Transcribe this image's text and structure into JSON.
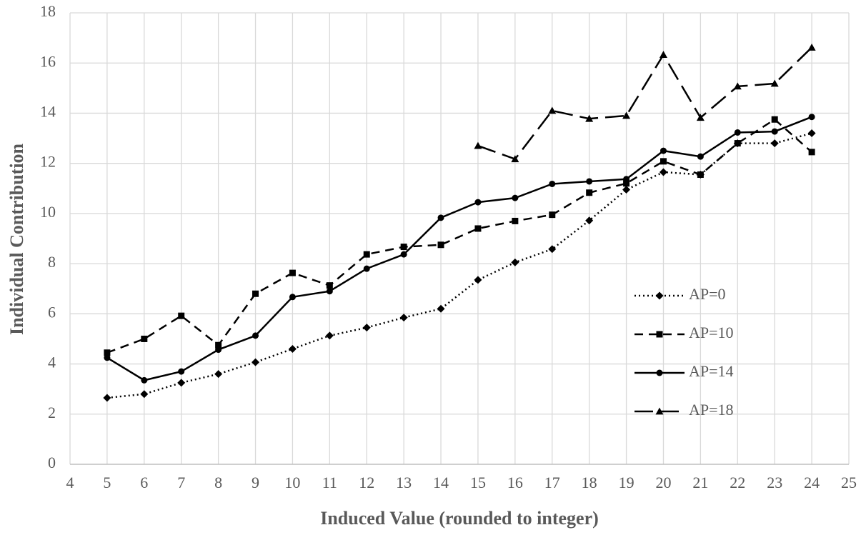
{
  "chart_data": {
    "type": "line",
    "x_label": "Induced Value (rounded to integer)",
    "y_label": "Individual Contribution",
    "x": [
      5,
      6,
      7,
      8,
      9,
      10,
      11,
      12,
      13,
      14,
      15,
      16,
      17,
      18,
      19,
      20,
      21,
      22,
      23,
      24
    ],
    "xlim": [
      4,
      25
    ],
    "xticks": [
      4,
      5,
      6,
      7,
      8,
      9,
      10,
      11,
      12,
      13,
      14,
      15,
      16,
      17,
      18,
      19,
      20,
      21,
      22,
      23,
      24,
      25
    ],
    "ylim": [
      0,
      18
    ],
    "yticks": [
      0,
      2,
      4,
      6,
      8,
      10,
      12,
      14,
      16,
      18
    ],
    "grid": true,
    "legend_position": "right",
    "series": [
      {
        "name": "AP=0",
        "color": "#000000",
        "dash": "dotted",
        "marker": "diamond",
        "values": [
          2.65,
          2.8,
          3.25,
          3.6,
          4.07,
          4.6,
          5.13,
          5.45,
          5.85,
          6.2,
          7.35,
          8.05,
          8.58,
          9.72,
          10.95,
          11.65,
          11.55,
          12.8,
          12.8,
          13.2
        ]
      },
      {
        "name": "AP=10",
        "color": "#000000",
        "dash": "dashed",
        "marker": "square",
        "values": [
          4.45,
          5.0,
          5.92,
          4.75,
          6.8,
          7.63,
          7.13,
          8.37,
          8.67,
          8.75,
          9.4,
          9.7,
          9.95,
          10.83,
          11.2,
          12.08,
          11.55,
          12.8,
          13.75,
          12.45
        ]
      },
      {
        "name": "AP=14",
        "color": "#000000",
        "dash": "solid",
        "marker": "circle",
        "values": [
          4.25,
          3.35,
          3.7,
          4.57,
          5.13,
          6.67,
          6.9,
          7.8,
          8.37,
          9.83,
          10.45,
          10.62,
          11.18,
          11.28,
          11.37,
          12.5,
          12.27,
          13.23,
          13.27,
          13.85
        ]
      },
      {
        "name": "AP=18",
        "color": "#000000",
        "dash": "longdash",
        "marker": "triangle",
        "values": [
          null,
          null,
          null,
          null,
          null,
          null,
          null,
          null,
          null,
          null,
          12.7,
          12.17,
          14.1,
          13.78,
          13.9,
          16.33,
          13.82,
          15.07,
          15.18,
          16.62
        ]
      }
    ]
  }
}
